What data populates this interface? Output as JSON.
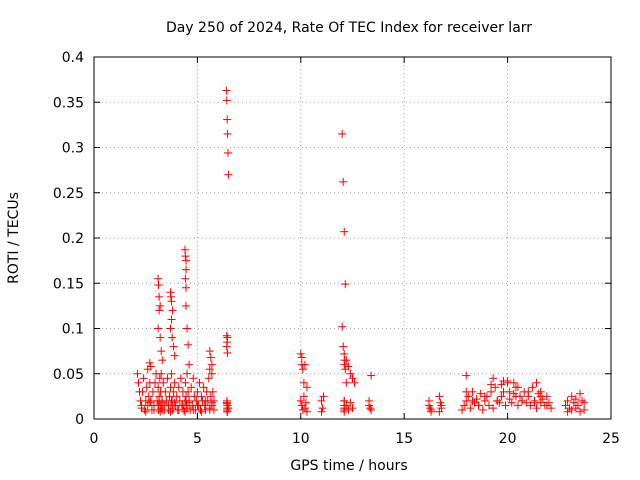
{
  "chart_data": {
    "type": "scatter",
    "title": "Day 250 of 2024, Rate Of TEC Index for receiver larr",
    "xlabel": "GPS time / hours",
    "ylabel": "ROTI / TECUs",
    "xlim": [
      0,
      25
    ],
    "ylim": [
      0,
      0.4
    ],
    "xticks": [
      "0",
      "5",
      "10",
      "15",
      "20",
      "25"
    ],
    "yticks": [
      "0",
      "0.05",
      "0.1",
      "0.15",
      "0.2",
      "0.25",
      "0.3",
      "0.35",
      "0.4"
    ],
    "grid": true,
    "marker": "+",
    "marker_color": "#ff0000",
    "series": [
      {
        "x": [
          2.1,
          2.15,
          2.2,
          2.25,
          2.3,
          2.35,
          2.4,
          2.45,
          2.5,
          2.55,
          2.6,
          2.65,
          2.7,
          2.75,
          2.8,
          2.85,
          2.9,
          2.95,
          3.0,
          3.05,
          3.1,
          3.12,
          3.15,
          3.18,
          3.2,
          3.22,
          3.25,
          3.28,
          3.3,
          3.35,
          3.4,
          3.45,
          3.5,
          3.55,
          3.6,
          3.65,
          3.7,
          3.72,
          3.75,
          3.78,
          3.8,
          3.85,
          3.9,
          3.95,
          4.0,
          4.05,
          4.1,
          4.15,
          4.2,
          4.25,
          4.3,
          4.35,
          4.4,
          4.42,
          4.45,
          4.48,
          4.5,
          4.55,
          4.6,
          4.65,
          4.7,
          4.75,
          4.8,
          4.85,
          4.9,
          4.95,
          5.0,
          5.05,
          5.1,
          5.15,
          5.2,
          5.25,
          5.3,
          5.35,
          5.4,
          5.45,
          5.5,
          5.55,
          5.6,
          5.65,
          5.7,
          5.75,
          5.8,
          6.4,
          6.42,
          6.44,
          6.46,
          6.48,
          6.5,
          6.45,
          6.42,
          6.45,
          6.43,
          6.5,
          6.45,
          2.3,
          2.5,
          2.7,
          2.9,
          3.1,
          3.15,
          3.2,
          3.25,
          3.3,
          3.4,
          3.6,
          3.7,
          3.75,
          3.8,
          3.9,
          4.1,
          4.3,
          4.4,
          4.45,
          4.5,
          4.6,
          4.8,
          5.0,
          5.2,
          5.4,
          5.6,
          5.7,
          5.8,
          10.0,
          10.05,
          10.1,
          10.15,
          10.2,
          10.25,
          10.3,
          10.0,
          10.2,
          10.3,
          11.0,
          11.05,
          11.1,
          11.0,
          12.0,
          12.05,
          12.1,
          12.15,
          12.0,
          12.05,
          12.1,
          12.2,
          12.3,
          12.4,
          12.5,
          12.6,
          12.1,
          12.2,
          12.3,
          12.4,
          12.5,
          13.3,
          13.35,
          13.4,
          13.3,
          13.4,
          16.2,
          16.25,
          16.3,
          16.2,
          16.3,
          16.7,
          16.75,
          16.8,
          16.7,
          16.8,
          17.8,
          17.9,
          18.0,
          18.1,
          18.2,
          18.3,
          18.4,
          18.5,
          18.6,
          18.7,
          18.8,
          18.9,
          19.0,
          19.1,
          19.2,
          19.3,
          19.4,
          19.5,
          19.6,
          19.7,
          19.8,
          19.9,
          20.0,
          20.1,
          20.2,
          20.3,
          20.4,
          20.5,
          20.6,
          20.7,
          20.8,
          20.9,
          21.0,
          21.1,
          21.2,
          21.3,
          21.4,
          21.5,
          21.6,
          21.7,
          21.8,
          21.9,
          22.0,
          22.1,
          18.0,
          18.3,
          18.6,
          18.9,
          19.2,
          19.5,
          19.8,
          20.1,
          20.4,
          20.7,
          21.0,
          21.3,
          21.6,
          21.9,
          22.8,
          22.9,
          23.0,
          23.1,
          23.2,
          23.3,
          23.4,
          23.5,
          23.6,
          23.7,
          22.9,
          23.1,
          23.3,
          23.5,
          23.7,
          6.42,
          6.44,
          6.43,
          6.45,
          6.44,
          6.43,
          6.44,
          6.42,
          12.1,
          12.1,
          12.1,
          12.1,
          12.1,
          12.12,
          12.15,
          12.1,
          12.2,
          3.1,
          3.12,
          3.15,
          3.2,
          3.15,
          3.1,
          3.2,
          3.25,
          3.3,
          3.7,
          3.72,
          3.75,
          3.8,
          3.75,
          3.7,
          3.78,
          3.85,
          3.9,
          4.4,
          4.42,
          4.45,
          4.45,
          4.42,
          4.45,
          4.45,
          4.5,
          4.55,
          4.6,
          2.7,
          2.75,
          2.6,
          5.6,
          5.65,
          5.7,
          5.6,
          5.7,
          10.05,
          10.05,
          10.1,
          10.15,
          18.0,
          19.3,
          19.7,
          20.0,
          20.3,
          20.5,
          21.4,
          21.6
        ],
        "y": [
          0.05,
          0.04,
          0.03,
          0.02,
          0.015,
          0.03,
          0.045,
          0.01,
          0.02,
          0.035,
          0.015,
          0.025,
          0.04,
          0.02,
          0.01,
          0.03,
          0.015,
          0.04,
          0.05,
          0.02,
          0.035,
          0.01,
          0.025,
          0.045,
          0.015,
          0.03,
          0.05,
          0.02,
          0.01,
          0.04,
          0.015,
          0.03,
          0.02,
          0.045,
          0.01,
          0.025,
          0.035,
          0.015,
          0.05,
          0.02,
          0.01,
          0.03,
          0.04,
          0.015,
          0.025,
          0.01,
          0.035,
          0.02,
          0.045,
          0.015,
          0.03,
          0.01,
          0.02,
          0.04,
          0.025,
          0.015,
          0.05,
          0.03,
          0.02,
          0.01,
          0.035,
          0.015,
          0.045,
          0.025,
          0.01,
          0.02,
          0.03,
          0.015,
          0.04,
          0.01,
          0.025,
          0.02,
          0.035,
          0.015,
          0.01,
          0.03,
          0.02,
          0.045,
          0.01,
          0.025,
          0.015,
          0.03,
          0.02,
          0.363,
          0.352,
          0.331,
          0.315,
          0.294,
          0.27,
          0.09,
          0.08,
          0.073,
          0.017,
          0.012,
          0.008,
          0.012,
          0.008,
          0.018,
          0.01,
          0.015,
          0.02,
          0.008,
          0.012,
          0.018,
          0.01,
          0.015,
          0.008,
          0.02,
          0.012,
          0.018,
          0.01,
          0.015,
          0.008,
          0.02,
          0.012,
          0.018,
          0.01,
          0.015,
          0.008,
          0.02,
          0.012,
          0.018,
          0.01,
          0.02,
          0.015,
          0.01,
          0.025,
          0.012,
          0.018,
          0.008,
          0.072,
          0.06,
          0.035,
          0.02,
          0.012,
          0.025,
          0.008,
          0.315,
          0.262,
          0.207,
          0.149,
          0.102,
          0.08,
          0.072,
          0.065,
          0.058,
          0.05,
          0.045,
          0.04,
          0.02,
          0.015,
          0.01,
          0.018,
          0.012,
          0.02,
          0.012,
          0.048,
          0.015,
          0.01,
          0.02,
          0.012,
          0.008,
          0.015,
          0.01,
          0.025,
          0.018,
          0.012,
          0.008,
          0.015,
          0.01,
          0.015,
          0.02,
          0.025,
          0.012,
          0.03,
          0.018,
          0.022,
          0.015,
          0.028,
          0.01,
          0.02,
          0.025,
          0.015,
          0.03,
          0.012,
          0.035,
          0.02,
          0.018,
          0.025,
          0.03,
          0.015,
          0.04,
          0.022,
          0.018,
          0.028,
          0.035,
          0.015,
          0.025,
          0.02,
          0.03,
          0.018,
          0.025,
          0.015,
          0.035,
          0.02,
          0.012,
          0.028,
          0.018,
          0.022,
          0.015,
          0.025,
          0.018,
          0.012,
          0.048,
          0.02,
          0.015,
          0.025,
          0.038,
          0.02,
          0.042,
          0.03,
          0.025,
          0.02,
          0.03,
          0.018,
          0.025,
          0.015,
          0.015,
          0.02,
          0.012,
          0.025,
          0.018,
          0.022,
          0.015,
          0.028,
          0.02,
          0.018,
          0.008,
          0.01,
          0.012,
          0.008,
          0.01,
          0.018,
          0.012,
          0.01,
          0.015,
          0.008,
          0.02,
          0.085,
          0.092,
          0.01,
          0.012,
          0.008,
          0.015,
          0.02,
          0.065,
          0.055,
          0.06,
          0.04,
          0.155,
          0.148,
          0.135,
          0.125,
          0.12,
          0.1,
          0.09,
          0.075,
          0.065,
          0.14,
          0.135,
          0.13,
          0.12,
          0.11,
          0.1,
          0.09,
          0.08,
          0.07,
          0.187,
          0.18,
          0.175,
          0.165,
          0.155,
          0.145,
          0.125,
          0.1,
          0.082,
          0.06,
          0.062,
          0.058,
          0.055,
          0.075,
          0.068,
          0.06,
          0.055,
          0.05,
          0.068,
          0.06,
          0.055,
          0.04,
          0.03,
          0.045,
          0.038,
          0.042,
          0.04,
          0.035,
          0.04,
          0.03
        ]
      }
    ]
  }
}
